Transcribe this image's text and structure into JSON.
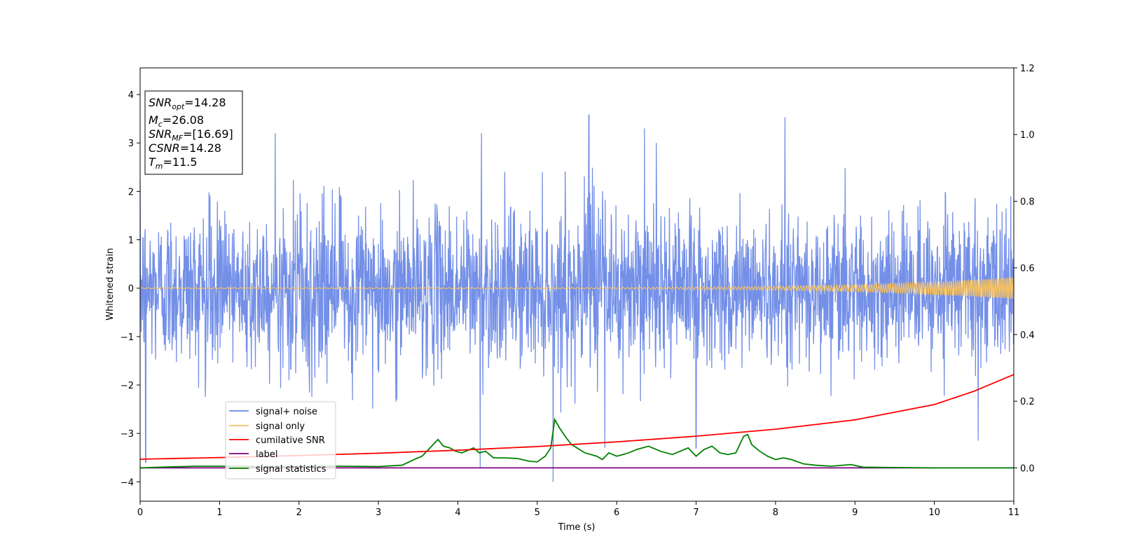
{
  "chart_data": {
    "type": "line",
    "xlabel": "Time (s)",
    "ylabel": "Whitened strain",
    "xlim": [
      0,
      11
    ],
    "ylim_left": [
      -4.4,
      4.55
    ],
    "ylim_right": [
      -0.1,
      1.2
    ],
    "x_ticks": [
      0,
      1,
      2,
      3,
      4,
      5,
      6,
      7,
      8,
      9,
      10,
      11
    ],
    "y_ticks_left": [
      -4,
      -3,
      -2,
      -1,
      0,
      1,
      2,
      3,
      4
    ],
    "y_ticks_right": [
      0.0,
      0.2,
      0.4,
      0.6,
      0.8,
      1.0,
      1.2
    ],
    "grid": false,
    "legend_position": "lower-left",
    "annotation": {
      "lines": [
        {
          "main": "SNR",
          "sub": "opt",
          "value": "=14.28"
        },
        {
          "main": "M",
          "sub": "c",
          "value": "=26.08"
        },
        {
          "main": "SNR",
          "sub": "MF",
          "value": "=[16.69]"
        },
        {
          "main": "CSNR",
          "sub": "",
          "value": "=14.28"
        },
        {
          "main": "T",
          "sub": "m",
          "value": "=11.5"
        }
      ]
    },
    "series": [
      {
        "name": "signal+ noise",
        "axis": "left",
        "color": "#6b89e6",
        "description_values": {
          "mean": 0.0,
          "std": 0.8,
          "spikes": [
            {
              "x": 0.07,
              "y": -3.6
            },
            {
              "x": 1.7,
              "y": 3.2
            },
            {
              "x": 4.3,
              "y": 3.2
            },
            {
              "x": 4.28,
              "y": -3.7
            },
            {
              "x": 5.2,
              "y": -4.0
            },
            {
              "x": 5.65,
              "y": 3.58
            },
            {
              "x": 6.35,
              "y": 3.3
            },
            {
              "x": 6.5,
              "y": 3.0
            },
            {
              "x": 7.0,
              "y": -3.3
            },
            {
              "x": 8.12,
              "y": 3.53
            },
            {
              "x": 10.55,
              "y": -3.15
            },
            {
              "x": 5.85,
              "y": -3.3
            }
          ]
        }
      },
      {
        "name": "signal only",
        "axis": "left",
        "color": "#f5c060",
        "chirp": {
          "amp_start": 0.01,
          "amp_end": 0.22,
          "freq_start_hz": 12,
          "freq_end_hz": 48
        }
      },
      {
        "name": "cumilative SNR",
        "axis": "right",
        "color": "#ff0000",
        "x": [
          0,
          1,
          2,
          3,
          4,
          5,
          6,
          7,
          8,
          9,
          10,
          10.5,
          11
        ],
        "y": [
          0.026,
          0.031,
          0.037,
          0.044,
          0.053,
          0.064,
          0.078,
          0.095,
          0.116,
          0.144,
          0.19,
          0.23,
          0.28
        ]
      },
      {
        "name": "label",
        "axis": "right",
        "color": "#800080",
        "x": [
          0,
          11
        ],
        "y": [
          0.0,
          0.0
        ]
      },
      {
        "name": "signal statistics",
        "axis": "right",
        "color": "#008000",
        "x": [
          0,
          0.4,
          0.7,
          1.0,
          1.5,
          2.0,
          2.5,
          3.0,
          3.3,
          3.45,
          3.55,
          3.65,
          3.75,
          3.82,
          3.9,
          3.97,
          4.05,
          4.2,
          4.27,
          4.35,
          4.45,
          4.6,
          4.75,
          4.9,
          5.0,
          5.1,
          5.17,
          5.22,
          5.28,
          5.35,
          5.43,
          5.5,
          5.6,
          5.75,
          5.82,
          5.9,
          6.0,
          6.05,
          6.15,
          6.25,
          6.4,
          6.55,
          6.7,
          6.8,
          6.9,
          7.0,
          7.1,
          7.2,
          7.3,
          7.4,
          7.5,
          7.6,
          7.65,
          7.7,
          7.8,
          7.9,
          8.0,
          8.1,
          8.2,
          8.35,
          8.5,
          8.7,
          8.95,
          9.1,
          9.5,
          10.0,
          11.0
        ],
        "y": [
          0.0,
          0.003,
          0.005,
          0.005,
          0.004,
          0.004,
          0.005,
          0.004,
          0.008,
          0.025,
          0.035,
          0.06,
          0.085,
          0.065,
          0.06,
          0.05,
          0.045,
          0.06,
          0.045,
          0.05,
          0.03,
          0.03,
          0.028,
          0.02,
          0.018,
          0.035,
          0.06,
          0.145,
          0.12,
          0.095,
          0.07,
          0.06,
          0.045,
          0.035,
          0.025,
          0.045,
          0.035,
          0.038,
          0.045,
          0.055,
          0.065,
          0.05,
          0.04,
          0.05,
          0.06,
          0.035,
          0.055,
          0.065,
          0.045,
          0.04,
          0.045,
          0.095,
          0.1,
          0.07,
          0.05,
          0.035,
          0.025,
          0.03,
          0.025,
          0.012,
          0.008,
          0.005,
          0.01,
          0.002,
          0.001,
          0.0,
          0.0
        ]
      }
    ]
  }
}
